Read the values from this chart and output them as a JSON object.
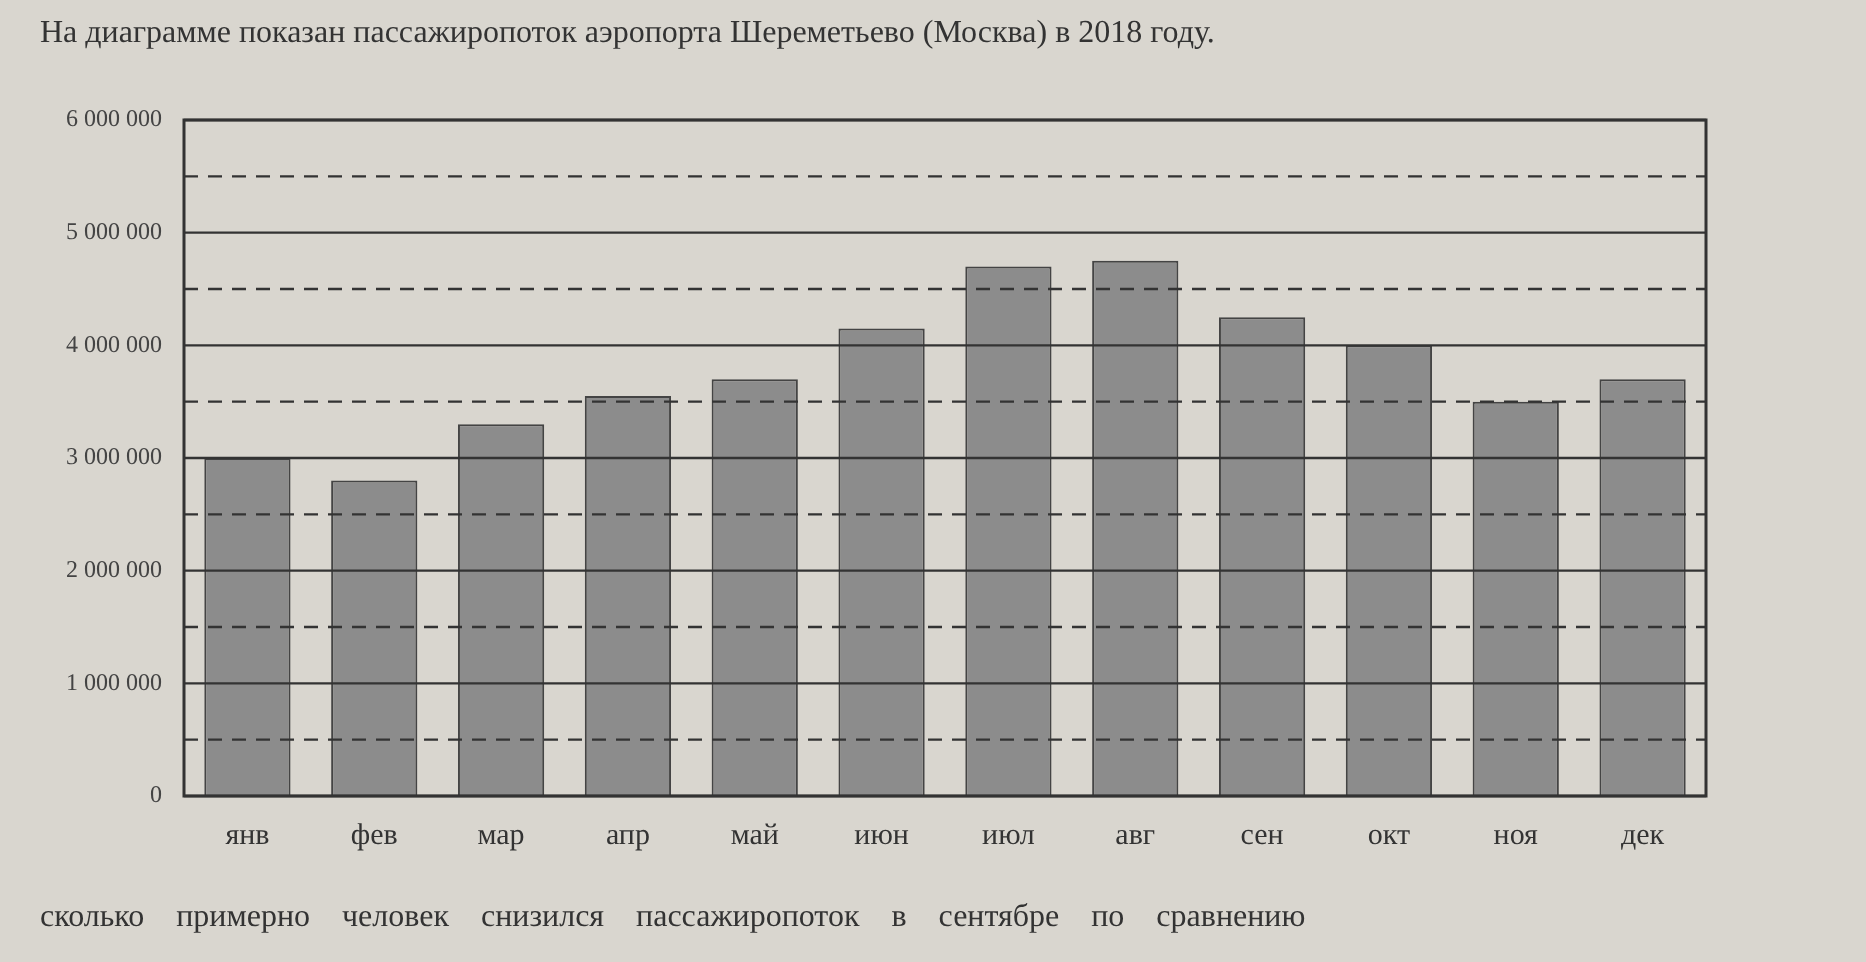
{
  "chart_data": {
    "type": "bar",
    "title": "На диаграмме показан пассажиропоток аэропорта Шереметьево (Москва) в 2018 году.",
    "categories": [
      "янв",
      "фев",
      "мар",
      "апр",
      "май",
      "июн",
      "июл",
      "авг",
      "сен",
      "окт",
      "ноя",
      "дек"
    ],
    "values": [
      3000000,
      2800000,
      3300000,
      3550000,
      3700000,
      4150000,
      4700000,
      4750000,
      4250000,
      4000000,
      3500000,
      3700000
    ],
    "color": "#8c8c8c",
    "ylim": [
      0,
      6000000
    ],
    "yticks": [
      {
        "value": 0,
        "label": "0"
      },
      {
        "value": 500000,
        "label": null
      },
      {
        "value": 1000000,
        "label": "1 000 000"
      },
      {
        "value": 1500000,
        "label": null
      },
      {
        "value": 2000000,
        "label": "2 000 000"
      },
      {
        "value": 2500000,
        "label": null
      },
      {
        "value": 3000000,
        "label": "3 000 000"
      },
      {
        "value": 3500000,
        "label": null
      },
      {
        "value": 4000000,
        "label": "4 000 000"
      },
      {
        "value": 4500000,
        "label": null
      },
      {
        "value": 5000000,
        "label": "5 000 000"
      },
      {
        "value": 5500000,
        "label": null
      },
      {
        "value": 6000000,
        "label": "6 000 000"
      }
    ],
    "grid": "y",
    "annotations": [
      "сколько примерно человек снизился пассажиропоток в сентябре по сравнению"
    ]
  }
}
